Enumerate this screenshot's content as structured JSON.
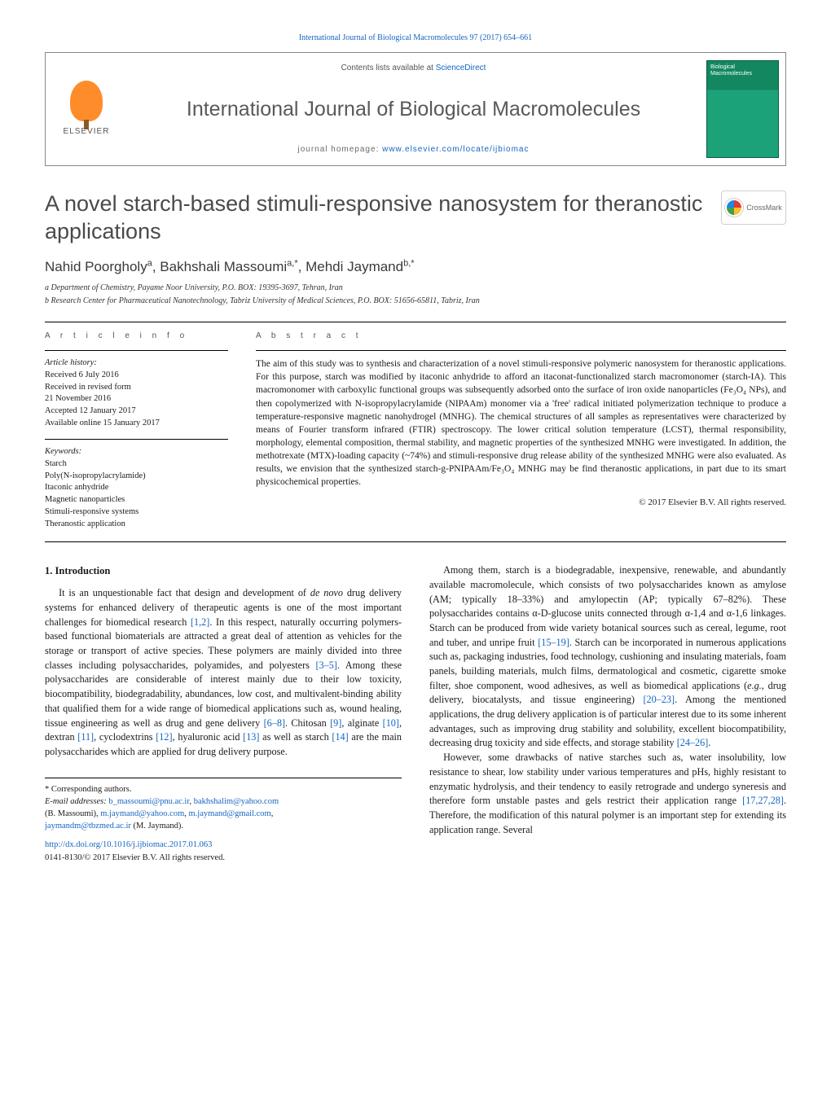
{
  "running_head": "International Journal of Biological Macromolecules 97 (2017) 654–661",
  "header": {
    "publisher": "ELSEVIER",
    "contents_line_pre": "Contents lists available at ",
    "contents_line_link": "ScienceDirect",
    "journal_title": "International Journal of Biological Macromolecules",
    "homepage_pre": "journal homepage: ",
    "homepage_link": "www.elsevier.com/locate/ijbiomac",
    "cover_title": "Biological Macromolecules"
  },
  "title": "A novel starch-based stimuli-responsive nanosystem for theranostic applications",
  "crossmark": "CrossMark",
  "authors_html": "Nahid Poorgholy<sup>a</sup>, Bakhshali Massoumi<sup>a,*</sup>, Mehdi Jaymand<sup>b,*</sup>",
  "affiliations": [
    "a Department of Chemistry, Payame Noor University, P.O. BOX: 19395-3697, Tehran, Iran",
    "b Research Center for Pharmaceutical Nanotechnology, Tabriz University of Medical Sciences, P.O. BOX: 51656-65811, Tabriz, Iran"
  ],
  "article_info": {
    "label_info": "a r t i c l e   i n f o",
    "history_label": "Article history:",
    "history": [
      "Received 6 July 2016",
      "Received in revised form",
      "21 November 2016",
      "Accepted 12 January 2017",
      "Available online 15 January 2017"
    ],
    "keywords_label": "Keywords:",
    "keywords": [
      "Starch",
      "Poly(N-isopropylacrylamide)",
      "Itaconic anhydride",
      "Magnetic nanoparticles",
      "Stimuli-responsive systems",
      "Theranostic application"
    ]
  },
  "abstract": {
    "label": "a b s t r a c t",
    "text": "The aim of this study was to synthesis and characterization of a novel stimuli-responsive polymeric nanosystem for theranostic applications. For this purpose, starch was modified by itaconic anhydride to afford an itaconat-functionalized starch macromonomer (starch-IA). This macromonomer with carboxylic functional groups was subsequently adsorbed onto the surface of iron oxide nanoparticles (Fe₃O₄ NPs), and then copolymerized with N-isopropylacrylamide (NIPAAm) monomer via a 'free' radical initiated polymerization technique to produce a temperature-responsive magnetic nanohydrogel (MNHG). The chemical structures of all samples as representatives were characterized by means of Fourier transform infrared (FTIR) spectroscopy. The lower critical solution temperature (LCST), thermal responsibility, morphology, elemental composition, thermal stability, and magnetic properties of the synthesized MNHG were investigated. In addition, the methotrexate (MTX)-loading capacity (~74%) and stimuli-responsive drug release ability of the synthesized MNHG were also evaluated. As results, we envision that the synthesized starch-g-PNIPAAm/Fe₃O₄ MNHG may be find theranostic applications, in part due to its smart physicochemical properties.",
    "copyright": "© 2017 Elsevier B.V. All rights reserved."
  },
  "body": {
    "intro_heading": "1. Introduction",
    "p1_pre": "It is an unquestionable fact that design and development of ",
    "p1_denovo": "de novo",
    "p1_mid1": " drug delivery systems for enhanced delivery of therapeutic agents is one of the most important challenges for biomedical research ",
    "c1": "[1,2]",
    "p1_mid2": ". In this respect, naturally occurring polymers-based functional biomaterials are attracted a great deal of attention as vehicles for the storage or transport of active species. These polymers are mainly divided into three classes including polysaccharides, polyamides, and polyesters ",
    "c2": "[3–5]",
    "p1_mid3": ". Among these polysaccharides are considerable of interest mainly due to their low toxicity, biocompatibility, biodegradability, abundances, low cost, and multivalent-binding ability that qualified them for a wide range of biomedical applications such as, wound healing, tissue engineering as well as drug and gene delivery ",
    "c3": "[6–8]",
    "p1_mid4": ". Chitosan ",
    "c4": "[9]",
    "p1_mid5": ", alginate ",
    "c5": "[10]",
    "p1_mid6": ", dextran ",
    "c6": "[11]",
    "p1_mid7": ", cyclodextrins ",
    "c7": "[12]",
    "p1_mid8": ", hyaluronic acid ",
    "c8": "[13]",
    "p1_mid9": " as well as starch ",
    "c9": "[14]",
    "p1_tail": " are the main polysaccharides which are applied for drug delivery purpose.",
    "p2_pre": "Among them, starch is a biodegradable, inexpensive, renewable, and abundantly available macromolecule, which consists of two polysaccharides known as amylose (AM; typically 18–33%) and amylopectin (AP; typically 67–82%). These polysaccharides contains α-D-glucose units connected through α-1,4 and α-1,6 linkages. Starch can be produced from wide variety botanical sources such as cereal, legume, root and tuber, and unripe fruit ",
    "c10": "[15–19]",
    "p2_mid1": ". Starch can be incorporated in numerous applications such as, packaging industries, food technology, cushioning and insulating materials, foam panels, building materials, mulch films, dermatological and cosmetic, cigarette smoke filter, shoe component, wood adhesives, as well as biomedical applications (",
    "p2_eg": "e.g.",
    "p2_mid2": ", drug delivery, biocatalysts, and tissue engineering) ",
    "c11": "[20–23]",
    "p2_mid3": ". Among the mentioned applications, the drug delivery application is of particular interest due to its some inherent advantages, such as improving drug stability and solubility, excellent biocompatibility, decreasing drug toxicity and side effects, and storage stability ",
    "c12": "[24–26]",
    "p2_tail": ".",
    "p3_pre": "However, some drawbacks of native starches such as, water insolubility, low resistance to shear, low stability under various temperatures and pHs, highly resistant to enzymatic hydrolysis, and their tendency to easily retrograde and undergo syneresis and therefore form unstable pastes and gels restrict their application range ",
    "c13": "[17,27,28]",
    "p3_tail": ". Therefore, the modification of this natural polymer is an important step for extending its application range. Several"
  },
  "footer": {
    "corr": "* Corresponding authors.",
    "email_label": "E-mail addresses: ",
    "e1": "b_massoumi@pnu.ac.ir",
    "e2": "bakhshalim@yahoo.com",
    "e_paren1": " (B. Massoumi), ",
    "e3": "m.jaymand@yahoo.com",
    "e4": "m.jaymand@gmail.com",
    "e5": "jaymandm@tbzmed.ac.ir",
    "e_paren2": " (M. Jaymand).",
    "doi": "http://dx.doi.org/10.1016/j.ijbiomac.2017.01.063",
    "issn": "0141-8130/© 2017 Elsevier B.V. All rights reserved."
  },
  "colors": {
    "link": "#1565c0",
    "text": "#1a1a1a",
    "heading_gray": "#4a4a4a",
    "elsevier_orange": "#ff8c2b",
    "cover_green": "#128760"
  }
}
